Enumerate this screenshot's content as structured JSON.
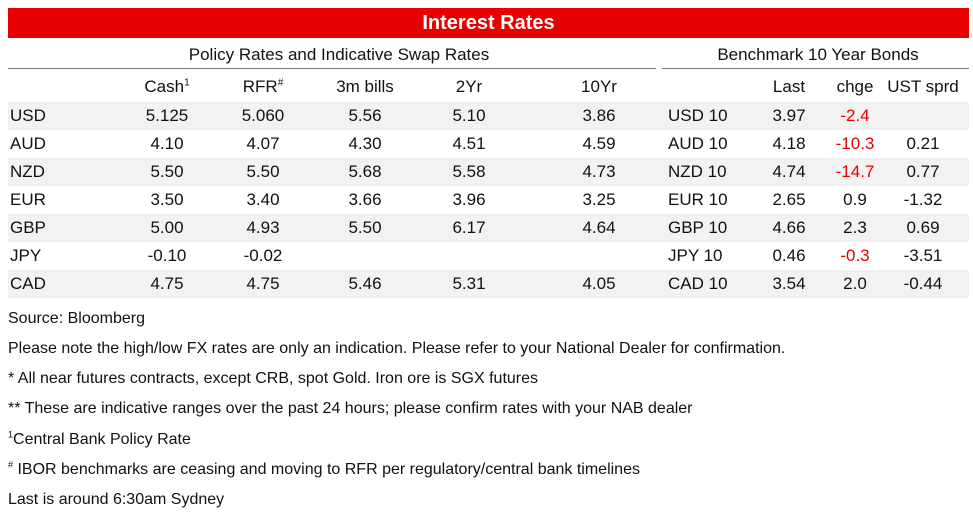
{
  "title": "Interest Rates",
  "left_section_title": "Policy Rates and Indicative Swap Rates",
  "right_section_title": "Benchmark 10 Year Bonds",
  "columns": {
    "cash": "Cash",
    "cash_mark": "1",
    "rfr": "RFR",
    "rfr_mark": "#",
    "bills3m": "3m bills",
    "y2": "2Yr",
    "y10": "10Yr",
    "last": "Last",
    "chge": "chge",
    "ust": "UST sprd"
  },
  "rows": [
    {
      "ccy": "USD",
      "cash": "5.125",
      "rfr": "5.060",
      "bills3m": "5.56",
      "y2": "5.10",
      "y10": "3.86",
      "bond": "USD 10",
      "last": "3.97",
      "chge": "-2.4",
      "ust": ""
    },
    {
      "ccy": "AUD",
      "cash": "4.10",
      "rfr": "4.07",
      "bills3m": "4.30",
      "y2": "4.51",
      "y10": "4.59",
      "bond": "AUD 10",
      "last": "4.18",
      "chge": "-10.3",
      "ust": "0.21"
    },
    {
      "ccy": "NZD",
      "cash": "5.50",
      "rfr": "5.50",
      "bills3m": "5.68",
      "y2": "5.58",
      "y10": "4.73",
      "bond": "NZD 10",
      "last": "4.74",
      "chge": "-14.7",
      "ust": "0.77"
    },
    {
      "ccy": "EUR",
      "cash": "3.50",
      "rfr": "3.40",
      "bills3m": "3.66",
      "y2": "3.96",
      "y10": "3.25",
      "bond": "EUR 10",
      "last": "2.65",
      "chge": "0.9",
      "ust": "-1.32"
    },
    {
      "ccy": "GBP",
      "cash": "5.00",
      "rfr": "4.93",
      "bills3m": "5.50",
      "y2": "6.17",
      "y10": "4.64",
      "bond": "GBP 10",
      "last": "4.66",
      "chge": "2.3",
      "ust": "0.69"
    },
    {
      "ccy": "JPY",
      "cash": "-0.10",
      "rfr": "-0.02",
      "bills3m": "",
      "y2": "",
      "y10": "",
      "bond": "JPY 10",
      "last": "0.46",
      "chge": "-0.3",
      "ust": "-3.51"
    },
    {
      "ccy": "CAD",
      "cash": "4.75",
      "rfr": "4.75",
      "bills3m": "5.46",
      "y2": "5.31",
      "y10": "4.05",
      "bond": "CAD 10",
      "last": "3.54",
      "chge": "2.0",
      "ust": "-0.44"
    }
  ],
  "notes": {
    "source": "Source: Bloomberg",
    "fx_note": "Please note the high/low FX rates are only an indication. Please refer to your National Dealer for confirmation.",
    "futures_note": "* All near futures contracts, except CRB, spot Gold.  Iron ore is SGX futures",
    "ranges_note": "** These are indicative ranges over the past 24 hours; please confirm rates with your NAB dealer",
    "policy_mark": "1",
    "policy_note": "Central Bank Policy Rate",
    "ibor_mark": "#",
    "ibor_note": " IBOR benchmarks are ceasing and moving to RFR per regulatory/central bank timelines",
    "last_note": "Last is around 6:30am Sydney"
  },
  "colors": {
    "banner": "#e60000",
    "negative": "#e60000",
    "row_shade": "#f2f2f2"
  }
}
